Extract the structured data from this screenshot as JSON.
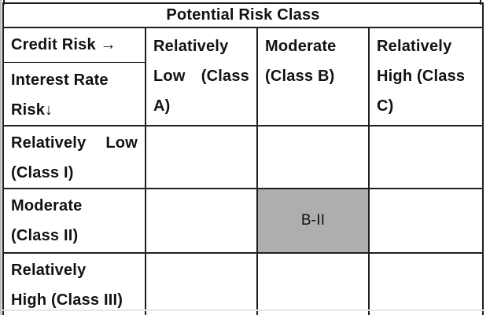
{
  "colors": {
    "page_bg": "#ffffff",
    "border": "#1f1f1f",
    "text": "#121212",
    "highlight_bg": "#b0adad",
    "edge_line": "#bdbdbd"
  },
  "table": {
    "title": "Potential Risk Class",
    "corner": {
      "top": "Credit Risk →",
      "bottom_lines": [
        "Interest Rate",
        "Risk↓"
      ]
    },
    "column_headers": [
      {
        "lines": [
          "Relatively",
          "Low (Class",
          "A)"
        ]
      },
      {
        "lines": [
          "Moderate",
          "(Class B)"
        ]
      },
      {
        "lines": [
          "Relatively",
          "High (Class",
          "C)"
        ]
      }
    ],
    "rows": [
      {
        "label_lines": [
          "Relatively Low",
          "(Class I)"
        ],
        "cells": [
          "",
          "",
          ""
        ]
      },
      {
        "label_lines": [
          "Moderate",
          "(Class II)"
        ],
        "cells": [
          "",
          "B-II",
          ""
        ]
      },
      {
        "label_lines": [
          "Relatively",
          "High (Class III)"
        ],
        "cells": [
          "",
          "",
          ""
        ]
      }
    ],
    "highlight": {
      "row": 1,
      "col": 1,
      "value": "B-II"
    }
  }
}
